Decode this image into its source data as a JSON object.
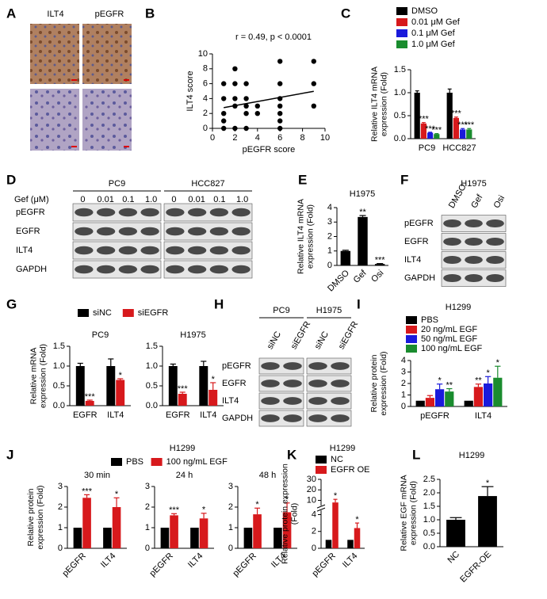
{
  "ihc": {
    "label": "A",
    "columns": [
      "ILT4",
      "pEGFR"
    ]
  },
  "blots": [
    {
      "label": "D",
      "groups": [
        "PC9",
        "HCC827"
      ],
      "col_title": "Gef (μM)",
      "columns": [
        "0",
        "0.01",
        "0.1",
        "1.0",
        "0",
        "0.01",
        "0.1",
        "1.0"
      ],
      "rows": [
        "pEGFR",
        "EGFR",
        "ILT4",
        "GAPDH"
      ]
    },
    {
      "label": "F",
      "groups": [
        "H1975"
      ],
      "columns": [
        "DMSO",
        "Gef",
        "Osi"
      ],
      "rows": [
        "pEGFR",
        "EGFR",
        "ILT4",
        "GAPDH"
      ]
    },
    {
      "label": "H",
      "groups": [
        "PC9",
        "H1975"
      ],
      "columns": [
        "siNC",
        "siEGFR",
        "siNC",
        "siEGFR"
      ],
      "rows": [
        "pEGFR",
        "EGFR",
        "ILT4",
        "GAPDH"
      ]
    }
  ],
  "chart_data": [
    {
      "type": "scatter",
      "label": "B",
      "title": "r = 0.49, p < 0.0001",
      "xlabel": "pEGFR score",
      "ylabel": "ILT4 score",
      "x": [
        1,
        1,
        1,
        1,
        1,
        2,
        2,
        2,
        2,
        2,
        3,
        3,
        3,
        3,
        3,
        4,
        4,
        6,
        6,
        6,
        6,
        6,
        6,
        6,
        9,
        9,
        9
      ],
      "values": [
        0,
        1,
        2,
        4,
        6,
        0,
        3,
        4,
        6,
        8,
        0,
        2,
        3,
        4,
        6,
        2,
        3,
        0,
        1,
        2,
        3,
        4,
        6,
        9,
        3,
        6,
        9
      ],
      "color": "#000000",
      "trendline": true,
      "xlim": [
        0,
        10
      ],
      "xticks": [
        0,
        2,
        4,
        6,
        8,
        10
      ],
      "ylim": [
        0,
        10
      ],
      "yticks": [
        0,
        2,
        4,
        6,
        8,
        10
      ]
    },
    {
      "type": "bar",
      "label": "C",
      "ylabel": "Relative ILT4 mRNA expression (Fold)",
      "categories": [
        "PC9",
        "HCC827"
      ],
      "series": [
        {
          "name": "DMSO",
          "color": "#000000",
          "values": [
            1.0,
            1.0
          ],
          "errors": [
            0.04,
            0.08
          ],
          "annotations": [
            null,
            null
          ]
        },
        {
          "name": "0.01 μM Gef",
          "color": "#d7191c",
          "values": [
            0.33,
            0.45
          ],
          "errors": [
            0.02,
            0.02
          ],
          "annotations": [
            "***",
            "***"
          ]
        },
        {
          "name": "0.1 μM Gef",
          "color": "#1a1adb",
          "values": [
            0.13,
            0.2
          ],
          "errors": [
            0.01,
            0.02
          ],
          "annotations": [
            "***",
            "***"
          ]
        },
        {
          "name": "1.0 μM Gef",
          "color": "#1a8c2e",
          "values": [
            0.1,
            0.2
          ],
          "errors": [
            0.01,
            0.02
          ],
          "annotations": [
            "***",
            "***"
          ]
        }
      ],
      "ylim": [
        0,
        1.5
      ],
      "yticks": [
        {
          "value": 0,
          "label": "0.0"
        },
        {
          "value": 0.5,
          "label": "0.5"
        },
        {
          "value": 1,
          "label": "1.0"
        },
        {
          "value": 1.5,
          "label": "1.5"
        }
      ]
    },
    {
      "type": "bar",
      "label": "E",
      "title": "H1975",
      "ylabel": "Relative ILT4 mRNA expression (Fold)",
      "categories": [
        "DMSO",
        "Gef",
        "Osi"
      ],
      "values": [
        1.0,
        3.35,
        0.1
      ],
      "errors": [
        0.05,
        0.1,
        0.03
      ],
      "annotations": [
        null,
        "**",
        "***"
      ],
      "color": "#000000",
      "ylim": [
        0,
        4
      ],
      "yticks": [
        0,
        1,
        2,
        3,
        4
      ]
    },
    {
      "type": "bar",
      "label": "G",
      "subtitle": "PC9",
      "ylabel": "Relative mRNA expression (Fold)",
      "categories": [
        "EGFR",
        "ILT4"
      ],
      "series": [
        {
          "name": "siNC",
          "color": "#000000",
          "values": [
            1.0,
            1.0
          ],
          "errors": [
            0.07,
            0.18
          ],
          "annotations": [
            null,
            null
          ]
        },
        {
          "name": "siEGFR",
          "color": "#d7191c",
          "values": [
            0.12,
            0.65
          ],
          "errors": [
            0.02,
            0.03
          ],
          "annotations": [
            "***",
            "*"
          ]
        }
      ],
      "ylim": [
        0,
        1.5
      ],
      "yticks": [
        {
          "value": 0,
          "label": "0.0"
        },
        {
          "value": 0.5,
          "label": "0.5"
        },
        {
          "value": 1,
          "label": "1.0"
        },
        {
          "value": 1.5,
          "label": "1.5"
        }
      ]
    },
    {
      "type": "bar",
      "subtitle": "H1975",
      "categories": [
        "EGFR",
        "ILT4"
      ],
      "series": [
        {
          "values": [
            1.0,
            1.0
          ],
          "color": "#000000",
          "errors": [
            0.05,
            0.12
          ],
          "annotations": [
            null,
            null
          ]
        },
        {
          "values": [
            0.3,
            0.4
          ],
          "color": "#d7191c",
          "errors": [
            0.04,
            0.18
          ],
          "annotations": [
            "***",
            "*"
          ]
        }
      ],
      "ylim": [
        0,
        1.5
      ],
      "yticks": [
        {
          "value": 0,
          "label": "0.0"
        },
        {
          "value": 0.5,
          "label": "0.5"
        },
        {
          "value": 1,
          "label": "1.0"
        },
        {
          "value": 1.5,
          "label": "1.5"
        }
      ]
    },
    {
      "type": "bar",
      "label": "I",
      "title": "H1299",
      "ylabel": "Relative protein expression (Fold)",
      "categories": [
        "pEGFR",
        "ILT4"
      ],
      "series": [
        {
          "name": "PBS",
          "color": "#000000",
          "values": [
            0.5,
            0.5
          ],
          "errors": [
            0,
            0
          ],
          "annotations": [
            null,
            null
          ]
        },
        {
          "name": "20 ng/mL EGF",
          "color": "#d7191c",
          "values": [
            0.75,
            1.7
          ],
          "errors": [
            0.2,
            0.25
          ],
          "annotations": [
            null,
            "**"
          ]
        },
        {
          "name": "50 ng/mL EGF",
          "color": "#1a1adb",
          "values": [
            1.5,
            2.0
          ],
          "errors": [
            0.45,
            0.6
          ],
          "annotations": [
            "*",
            "*"
          ]
        },
        {
          "name": "100 ng/mL EGF",
          "color": "#1a8c2e",
          "values": [
            1.3,
            2.5
          ],
          "errors": [
            0.25,
            1.0
          ],
          "annotations": [
            "**",
            "*"
          ]
        }
      ],
      "ylim": [
        0,
        4
      ],
      "yticks": [
        0,
        1,
        2,
        3,
        4
      ]
    },
    {
      "type": "bar",
      "label": "J",
      "title": "H1299",
      "subtitle": "30 min",
      "ylabel": "Relative protein expression (Fold)",
      "categories": [
        "pEGFR",
        "ILT4"
      ],
      "series": [
        {
          "name": "PBS",
          "color": "#000000",
          "values": [
            1.0,
            1.0
          ],
          "errors": [
            0,
            0
          ],
          "annotations": [
            null,
            null
          ]
        },
        {
          "name": "100 ng/mL EGF",
          "color": "#d7191c",
          "values": [
            2.45,
            2.0
          ],
          "errors": [
            0.15,
            0.45
          ],
          "annotations": [
            "***",
            "*"
          ]
        }
      ],
      "ylim": [
        0,
        3
      ],
      "yticks": [
        0,
        1,
        2,
        3
      ]
    },
    {
      "type": "bar",
      "subtitle": "24 h",
      "categories": [
        "pEGFR",
        "ILT4"
      ],
      "series": [
        {
          "values": [
            1.0,
            1.0
          ],
          "color": "#000000",
          "errors": [
            0,
            0
          ],
          "annotations": [
            null,
            null
          ]
        },
        {
          "values": [
            1.6,
            1.45
          ],
          "color": "#d7191c",
          "errors": [
            0.08,
            0.25
          ],
          "annotations": [
            "***",
            "*"
          ]
        }
      ],
      "ylim": [
        0,
        3
      ],
      "yticks": [
        0,
        1,
        2,
        3
      ]
    },
    {
      "type": "bar",
      "subtitle": "48 h",
      "categories": [
        "pEGFR",
        "ILT4"
      ],
      "series": [
        {
          "values": [
            1.0,
            1.0
          ],
          "color": "#000000",
          "errors": [
            0,
            0
          ],
          "annotations": [
            null,
            null
          ]
        },
        {
          "values": [
            1.65,
            1.75
          ],
          "color": "#d7191c",
          "errors": [
            0.3,
            0.45
          ],
          "annotations": [
            "*",
            "*"
          ]
        }
      ],
      "ylim": [
        0,
        3
      ],
      "yticks": [
        0,
        1,
        2,
        3
      ]
    },
    {
      "type": "bar",
      "label": "K",
      "title": "H1299",
      "ylabel": "Relative protein expression (Fold)",
      "categories": [
        "pEGFR",
        "ILT4"
      ],
      "series": [
        {
          "name": "NC",
          "color": "#000000",
          "values": [
            1.0,
            1.0
          ],
          "errors": [
            0,
            0
          ],
          "annotations": [
            null,
            null
          ]
        },
        {
          "name": "EGFR OE",
          "color": "#d7191c",
          "values": [
            8,
            2.4
          ],
          "errors": [
            3,
            0.6
          ],
          "annotations": [
            "*",
            "*"
          ]
        }
      ],
      "ylim": [
        0,
        30
      ],
      "ybreak": [
        4.5,
        5
      ],
      "yticks": [
        0,
        2,
        4,
        10,
        20,
        30
      ]
    },
    {
      "type": "bar",
      "label": "L",
      "title": "H1299",
      "ylabel": "Relative EGF mRNA expression (Fold)",
      "categories": [
        "NC",
        "EGFR-OE"
      ],
      "values": [
        1.0,
        1.88
      ],
      "errors": [
        0.08,
        0.35
      ],
      "annotations": [
        null,
        "*"
      ],
      "color": "#000000",
      "ylim": [
        0,
        2.5
      ],
      "yticks": [
        {
          "value": 0,
          "label": "0.0"
        },
        {
          "value": 0.5,
          "label": "0.5"
        },
        {
          "value": 1,
          "label": "1.0"
        },
        {
          "value": 1.5,
          "label": "1.5"
        },
        {
          "value": 2,
          "label": "2.0"
        },
        {
          "value": 2.5,
          "label": "2.5"
        }
      ]
    }
  ]
}
